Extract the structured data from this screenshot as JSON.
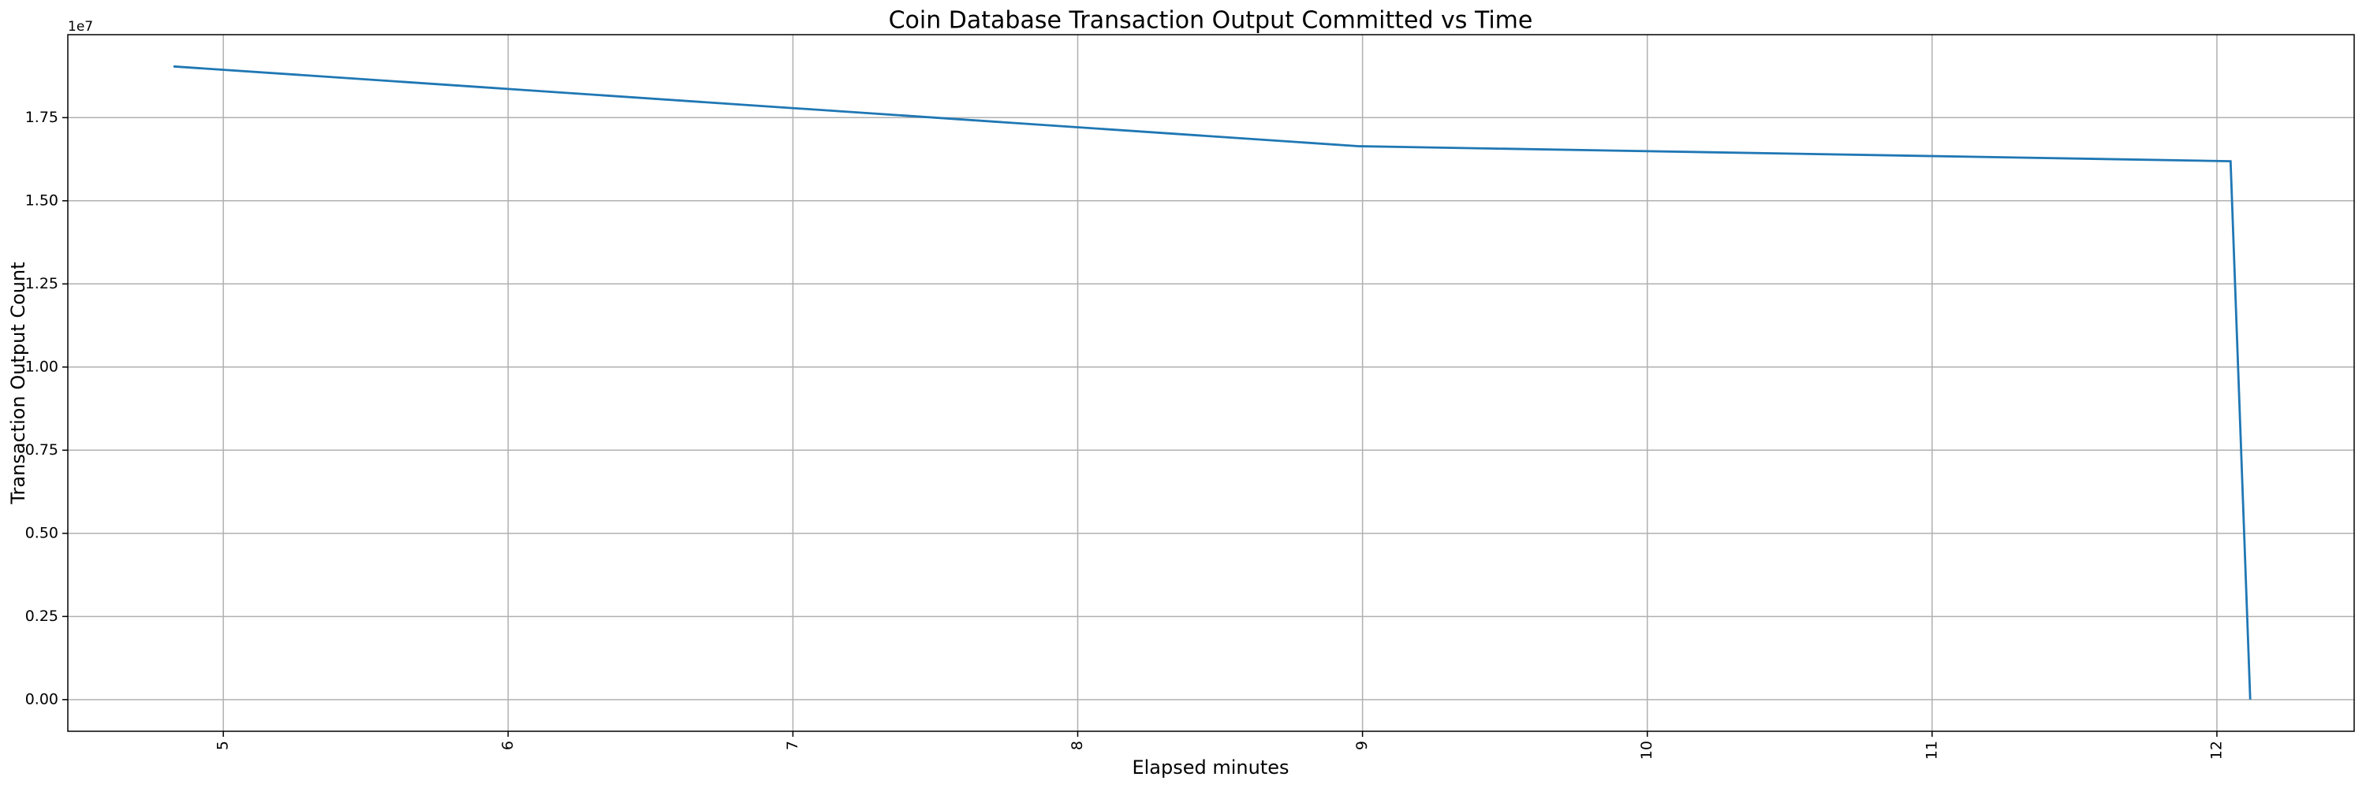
{
  "chart_data": {
    "type": "line",
    "title": "Coin Database Transaction Output Committed vs Time",
    "x_label": "Elapsed minutes",
    "y_label": "Transaction Output Count",
    "y_offset_label": "1e7",
    "x": [
      4.825,
      8.99,
      12.048,
      12.117
    ],
    "series": [
      {
        "color": "#1f77b4",
        "values": [
          19040000,
          16640000,
          16190000,
          0
        ]
      }
    ],
    "xlim": [
      4.454,
      12.482
    ],
    "xticks": [
      5,
      6,
      7,
      8,
      9,
      10,
      11,
      12
    ],
    "ylim": [
      -952000,
      19995000
    ],
    "yticks": [
      {
        "value": 0,
        "label": "0.00"
      },
      {
        "value": 2500000,
        "label": "0.25"
      },
      {
        "value": 5000000,
        "label": "0.50"
      },
      {
        "value": 7500000,
        "label": "0.75"
      },
      {
        "value": 10000000,
        "label": "1.00"
      },
      {
        "value": 12500000,
        "label": "1.25"
      },
      {
        "value": 15000000,
        "label": "1.50"
      },
      {
        "value": 17500000,
        "label": "1.75"
      }
    ],
    "grid": true
  }
}
